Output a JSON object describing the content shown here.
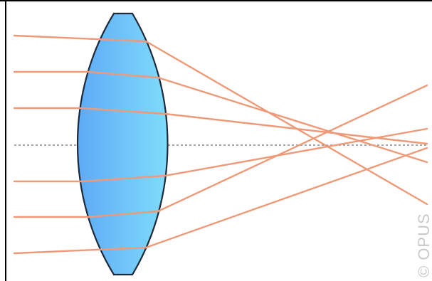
{
  "diagram": {
    "watermark": "© OPUS",
    "colors": {
      "ray": "#ee9a78",
      "lens_light": "#7fdcfb",
      "lens_dark": "#5eaaf6",
      "lens_outline": "#1e2a38",
      "axis": "#8a8a8a",
      "frame": "#000000",
      "watermark": "#c8c8c8"
    }
  }
}
